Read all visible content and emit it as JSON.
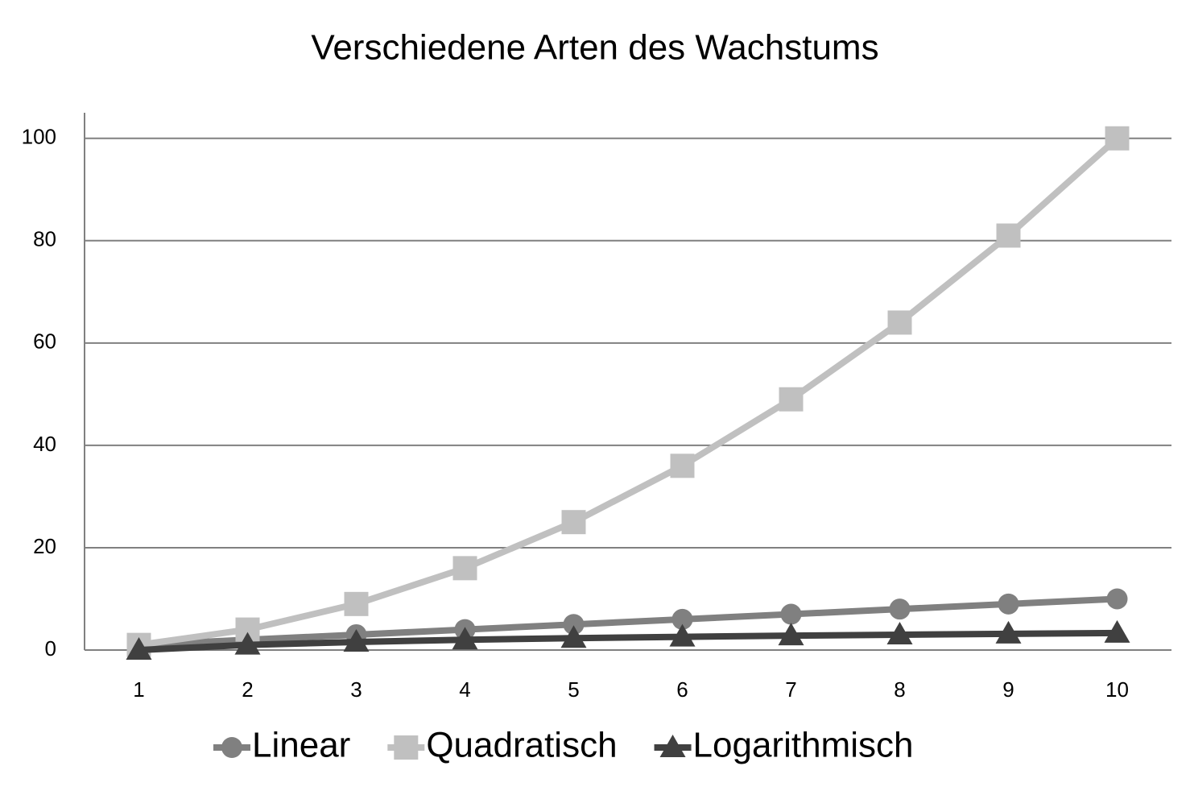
{
  "chart_data": {
    "type": "line",
    "title": "Verschiedene Arten des Wachstums",
    "categories": [
      "1",
      "2",
      "3",
      "4",
      "5",
      "6",
      "7",
      "8",
      "9",
      "10"
    ],
    "series": [
      {
        "name": "Linear",
        "color": "#808080",
        "marker": "circle",
        "values": [
          1,
          2,
          3,
          4,
          5,
          6,
          7,
          8,
          9,
          10
        ]
      },
      {
        "name": "Quadratisch",
        "color": "#c0c0c0",
        "marker": "square",
        "values": [
          1,
          4,
          9,
          16,
          25,
          36,
          49,
          64,
          81,
          100
        ]
      },
      {
        "name": "Logarithmisch",
        "color": "#404040",
        "marker": "triangle",
        "values": [
          0,
          1,
          1.58,
          2,
          2.32,
          2.58,
          2.81,
          3,
          3.17,
          3.32
        ]
      }
    ],
    "ylim": [
      0,
      105
    ],
    "yticks": [
      0,
      20,
      40,
      60,
      80,
      100
    ],
    "grid": true,
    "legend": "bottom"
  }
}
